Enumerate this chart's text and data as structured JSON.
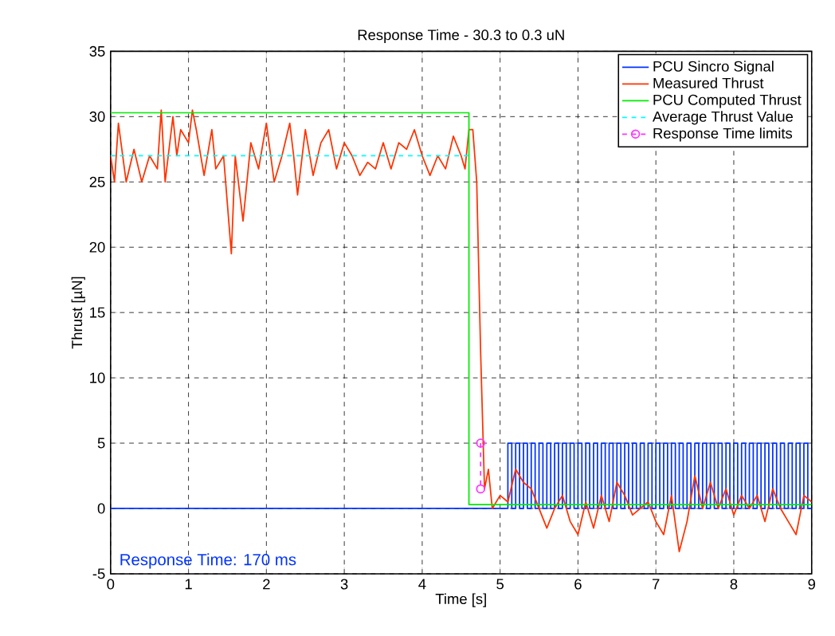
{
  "chart_data": {
    "type": "line",
    "title": "Response Time - 30.3 to 0.3 uN",
    "xlabel": "Time [s]",
    "ylabel": "Thrust [µN]",
    "xlim": [
      0,
      9
    ],
    "ylim": [
      -5,
      35
    ],
    "xticks": [
      0,
      1,
      2,
      3,
      4,
      5,
      6,
      7,
      8,
      9
    ],
    "yticks": [
      -5,
      0,
      5,
      10,
      15,
      20,
      25,
      30,
      35
    ],
    "grid": true,
    "legend": "top right",
    "annotations": [
      "Response Time:  170 ms"
    ],
    "series": [
      {
        "name": "PCU Sincro Signal",
        "color": "#0033ff",
        "type": "step",
        "x": [
          0,
          5.1,
          5.15,
          5.2,
          5.25,
          5.3,
          5.35,
          5.4,
          5.45,
          5.5,
          5.55,
          5.6,
          5.65,
          5.7,
          5.75,
          5.8,
          5.85,
          5.9,
          5.95,
          6.0,
          6.05,
          6.1,
          6.15,
          6.2,
          6.25,
          6.3,
          6.35,
          6.4,
          6.45,
          6.5,
          6.55,
          6.6,
          6.65,
          6.7,
          6.75,
          6.8,
          6.85,
          6.9,
          6.95,
          7.0,
          7.05,
          7.1,
          7.15,
          7.2,
          7.25,
          7.3,
          7.35,
          7.4,
          7.45,
          7.5,
          7.55,
          7.6,
          7.65,
          7.7,
          7.75,
          7.8,
          7.85,
          7.9,
          7.95,
          8.0,
          8.05,
          8.1,
          8.15,
          8.2,
          8.25,
          8.3,
          8.35,
          8.4,
          8.45,
          8.5,
          8.55,
          8.6,
          8.65,
          8.7,
          8.75,
          8.8,
          8.85,
          8.9,
          8.95,
          9.0
        ],
        "values": [
          0,
          5,
          0,
          5,
          0,
          5,
          0,
          5,
          0,
          5,
          0,
          5,
          0,
          5,
          0,
          5,
          0,
          5,
          0,
          5,
          0,
          5,
          0,
          5,
          0,
          5,
          0,
          5,
          0,
          5,
          0,
          5,
          0,
          5,
          0,
          5,
          0,
          5,
          0,
          5,
          0,
          5,
          0,
          5,
          0,
          5,
          0,
          5,
          0,
          5,
          0,
          5,
          0,
          5,
          0,
          5,
          0,
          5,
          0,
          5,
          0,
          5,
          0,
          5,
          0,
          5,
          0,
          5,
          0,
          5,
          0,
          5,
          0,
          5,
          0,
          5,
          0,
          5,
          0,
          0
        ]
      },
      {
        "name": "Measured Thrust",
        "color": "#ff3300",
        "x": [
          0,
          0.05,
          0.1,
          0.2,
          0.3,
          0.4,
          0.5,
          0.6,
          0.65,
          0.7,
          0.8,
          0.85,
          0.9,
          1.0,
          1.05,
          1.1,
          1.2,
          1.3,
          1.35,
          1.45,
          1.55,
          1.6,
          1.7,
          1.8,
          1.9,
          2.0,
          2.1,
          2.2,
          2.3,
          2.35,
          2.4,
          2.5,
          2.6,
          2.7,
          2.8,
          2.9,
          3.0,
          3.1,
          3.2,
          3.3,
          3.4,
          3.5,
          3.6,
          3.7,
          3.8,
          3.9,
          4.0,
          4.1,
          4.2,
          4.3,
          4.4,
          4.5,
          4.55,
          4.6,
          4.65,
          4.7,
          4.75,
          4.8,
          4.85,
          4.9,
          5.0,
          5.1,
          5.2,
          5.3,
          5.4,
          5.5,
          5.6,
          5.7,
          5.8,
          5.9,
          6.0,
          6.1,
          6.2,
          6.3,
          6.4,
          6.5,
          6.6,
          6.7,
          6.8,
          6.9,
          7.0,
          7.1,
          7.2,
          7.3,
          7.4,
          7.5,
          7.6,
          7.7,
          7.8,
          7.9,
          8.0,
          8.1,
          8.2,
          8.3,
          8.4,
          8.5,
          8.6,
          8.7,
          8.8,
          8.9,
          9.0
        ],
        "values": [
          27,
          25,
          29.5,
          25,
          27.5,
          25,
          27,
          26,
          30.5,
          25,
          30,
          27,
          29,
          28,
          30.5,
          29,
          25.5,
          29,
          26,
          27,
          19.5,
          27,
          22,
          28,
          26,
          29.5,
          25,
          27,
          29.5,
          27,
          24,
          29,
          25.5,
          28,
          29,
          26,
          28,
          27,
          25.5,
          26.5,
          26,
          28,
          26,
          28,
          27.5,
          29,
          27,
          25.5,
          27,
          26,
          28.5,
          27,
          26,
          29,
          29,
          25,
          12,
          1.5,
          3,
          0,
          1,
          0.5,
          3,
          2,
          1.5,
          0,
          -1.5,
          0,
          1,
          -1,
          -2,
          0.5,
          -1.5,
          1,
          -1,
          2,
          1,
          -0.5,
          0,
          0.5,
          -1,
          -2,
          1,
          -3.3,
          -1,
          2.5,
          0,
          2,
          0,
          1.5,
          -0.5,
          1,
          0,
          1,
          -1,
          1.5,
          0,
          -1,
          -2,
          1,
          0.5
        ]
      },
      {
        "name": "PCU Computed Thrust",
        "color": "#00ee00",
        "x": [
          0,
          4.6,
          4.6,
          9
        ],
        "values": [
          30.3,
          30.3,
          0.3,
          0.3
        ]
      },
      {
        "name": "Average Thrust Value",
        "color": "#00ffff",
        "line_style": "dashed",
        "x": [
          0,
          4.6
        ],
        "values": [
          27,
          27
        ]
      },
      {
        "name": "Response Time limits",
        "color": "#ff33ff",
        "line_style": "dashed",
        "marker": "circle",
        "x": [
          4.75,
          4.75
        ],
        "values": [
          5,
          1.5
        ]
      }
    ]
  }
}
